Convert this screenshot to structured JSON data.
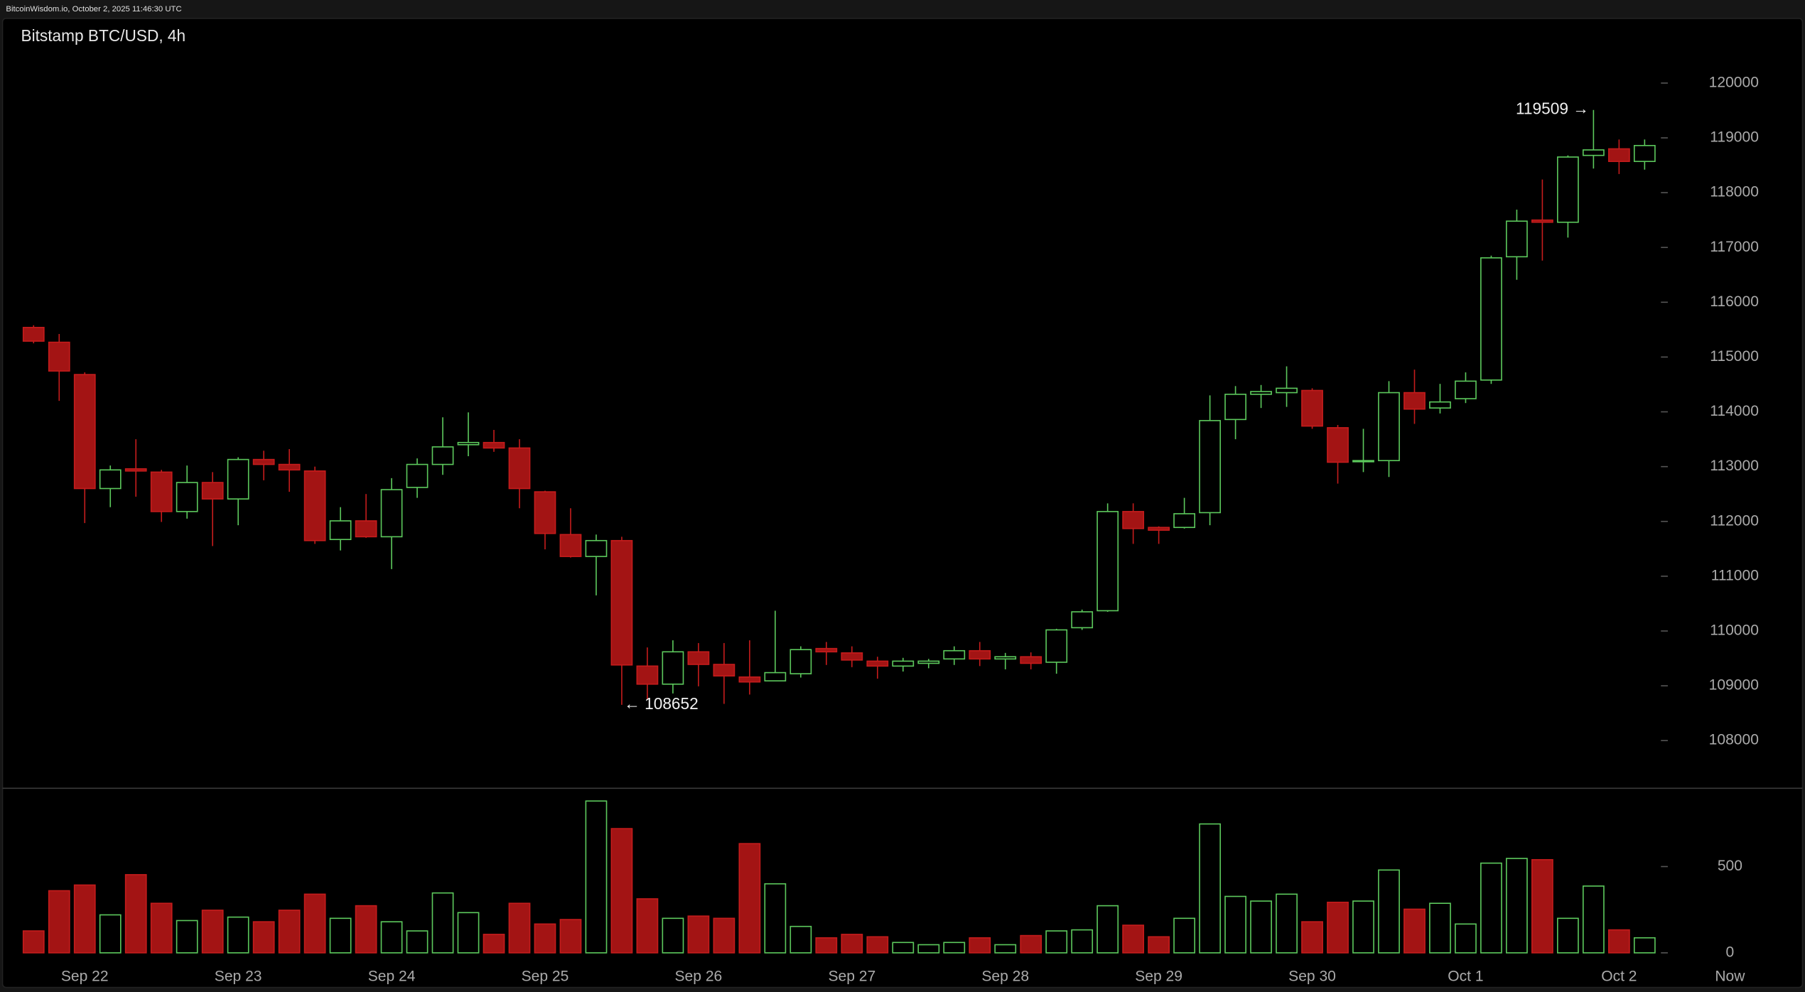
{
  "chart_data": {
    "type": "candlestick",
    "header": "BitcoinWisdom.io, October 2, 2025 11:46:30 UTC",
    "title": "Bitstamp BTC/USD, 4h",
    "now_label": "Now",
    "categories": [
      null,
      null,
      "Sep 22",
      null,
      null,
      null,
      null,
      null,
      "Sep 23",
      null,
      null,
      null,
      null,
      null,
      "Sep 24",
      null,
      null,
      null,
      null,
      null,
      "Sep 25",
      null,
      null,
      null,
      null,
      null,
      "Sep 26",
      null,
      null,
      null,
      null,
      null,
      "Sep 27",
      null,
      null,
      null,
      null,
      null,
      "Sep 28",
      null,
      null,
      null,
      null,
      null,
      "Sep 29",
      null,
      null,
      null,
      null,
      null,
      "Sep 30",
      null,
      null,
      null,
      null,
      null,
      "Oct 1",
      null,
      null,
      null,
      null,
      null,
      "Oct 2",
      null
    ],
    "open": [
      115540,
      115270,
      114680,
      112600,
      112960,
      112900,
      112180,
      112710,
      112410,
      113130,
      113040,
      112920,
      111670,
      112010,
      111720,
      112620,
      113040,
      113400,
      113440,
      113340,
      112540,
      111760,
      111360,
      111650,
      109360,
      109030,
      109620,
      109390,
      109160,
      109090,
      109220,
      109680,
      109600,
      109450,
      109360,
      109410,
      109490,
      109640,
      109490,
      109530,
      109430,
      110060,
      110370,
      112180,
      111890,
      111890,
      112160,
      113860,
      114320,
      114350,
      114390,
      113710,
      113090,
      113110,
      114350,
      114070,
      114240,
      114580,
      116830,
      117500,
      117460,
      118680,
      118800,
      118570
    ],
    "high": [
      115580,
      115420,
      114720,
      113020,
      113500,
      112940,
      113020,
      112900,
      113170,
      113290,
      113320,
      113000,
      112260,
      112500,
      112790,
      113150,
      113900,
      113990,
      113670,
      113500,
      112560,
      112240,
      111760,
      111720,
      109700,
      109830,
      109780,
      109780,
      109830,
      110370,
      109720,
      109800,
      109720,
      109530,
      109510,
      109490,
      109720,
      109800,
      109600,
      109610,
      110040,
      110390,
      112330,
      112330,
      111910,
      112430,
      114300,
      114470,
      114490,
      114830,
      114430,
      113760,
      113690,
      114560,
      114770,
      114510,
      114720,
      116850,
      117690,
      118240,
      118680,
      119509,
      118970,
      118970
    ],
    "low": [
      115250,
      114200,
      111970,
      112260,
      112450,
      111990,
      112050,
      111550,
      111930,
      112750,
      112540,
      111590,
      111470,
      111700,
      111130,
      112430,
      112850,
      113190,
      113270,
      112240,
      111490,
      111340,
      110650,
      108652,
      108750,
      108860,
      108990,
      108670,
      108840,
      109090,
      109150,
      109380,
      109340,
      109130,
      109260,
      109320,
      109380,
      109360,
      109300,
      109300,
      109220,
      110020,
      110350,
      111590,
      111590,
      111870,
      111930,
      113500,
      114070,
      114090,
      113690,
      112690,
      112900,
      112810,
      113780,
      113970,
      114160,
      114510,
      116410,
      116760,
      117180,
      118440,
      118340,
      118420
    ],
    "close": [
      115290,
      114745,
      112600,
      112940,
      112920,
      112180,
      112710,
      112410,
      113130,
      113040,
      112940,
      111650,
      112010,
      111720,
      112580,
      113040,
      113360,
      113440,
      113340,
      112600,
      111780,
      111360,
      111650,
      109380,
      109030,
      109620,
      109390,
      109180,
      109070,
      109240,
      109660,
      109620,
      109470,
      109360,
      109450,
      109450,
      109640,
      109490,
      109530,
      109410,
      110020,
      110350,
      112180,
      111870,
      111840,
      112140,
      113840,
      114320,
      114370,
      114430,
      113740,
      113080,
      113110,
      114350,
      114050,
      114180,
      114560,
      116810,
      117480,
      117460,
      118650,
      118780,
      118570,
      118860
    ],
    "volume": [
      127,
      360,
      393,
      220,
      453,
      287,
      187,
      247,
      207,
      180,
      247,
      340,
      200,
      273,
      180,
      127,
      347,
      233,
      107,
      287,
      167,
      193,
      880,
      720,
      313,
      200,
      213,
      200,
      633,
      400,
      153,
      87,
      107,
      93,
      60,
      47,
      60,
      87,
      47,
      100,
      127,
      133,
      273,
      160,
      93,
      200,
      747,
      327,
      300,
      340,
      180,
      293,
      300,
      480,
      253,
      287,
      167,
      520,
      547,
      540,
      200,
      387,
      133,
      87
    ],
    "up_color": "#5cc85c",
    "down_color": "#a31414",
    "ylim": [
      107150,
      121180
    ],
    "yticks": [
      108000,
      109000,
      110000,
      111000,
      112000,
      113000,
      114000,
      115000,
      116000,
      117000,
      118000,
      119000,
      120000
    ],
    "volume_ylim": [
      -67,
      947
    ],
    "volume_ticks": [
      0,
      500
    ],
    "annotations": [
      {
        "label": "119509 →",
        "value": 119509
      },
      {
        "label": "← 108652",
        "value": 108652
      }
    ]
  }
}
